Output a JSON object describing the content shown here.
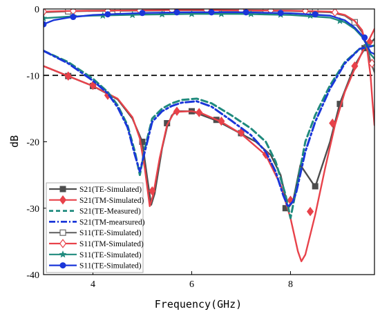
{
  "chart_data": {
    "type": "line",
    "title": "",
    "xlabel": "Frequency(GHz)",
    "ylabel": "dB",
    "xlim": [
      3,
      9.7
    ],
    "ylim": [
      -40,
      0
    ],
    "xticks": [
      4,
      6,
      8
    ],
    "yticks": [
      0,
      -10,
      -20,
      -30,
      -40
    ],
    "grid": false,
    "legend_position": "bottom-left",
    "reference_line": {
      "y": -10,
      "style": "dashed",
      "color": "#000000"
    },
    "series": [
      {
        "name": "S21(TE-Simulated)",
        "color": "#4d4d4d",
        "dash": "solid",
        "marker": "square-filled",
        "points": [
          [
            3,
            -8.6
          ],
          [
            3.5,
            -10.1
          ],
          [
            4,
            -11.6
          ],
          [
            4.5,
            -13.6
          ],
          [
            4.8,
            -16.5
          ],
          [
            5.0,
            -20.0
          ],
          [
            5.1,
            -25.5
          ],
          [
            5.18,
            -29.5
          ],
          [
            5.25,
            -27.8
          ],
          [
            5.4,
            -21.0
          ],
          [
            5.5,
            -17.8
          ],
          [
            5.6,
            -16.0
          ],
          [
            5.7,
            -15.4
          ],
          [
            6.0,
            -15.4
          ],
          [
            6.5,
            -16.8
          ],
          [
            7.0,
            -18.8
          ],
          [
            7.3,
            -20.0
          ],
          [
            7.6,
            -22.0
          ],
          [
            7.8,
            -25.0
          ],
          [
            7.95,
            -30.0
          ],
          [
            8.05,
            -29.0
          ],
          [
            8.2,
            -23.5
          ],
          [
            8.5,
            -26.8
          ],
          [
            8.8,
            -20.0
          ],
          [
            9.0,
            -14.2
          ],
          [
            9.3,
            -8.5
          ],
          [
            9.5,
            -6.0
          ],
          [
            9.7,
            -4.5
          ]
        ],
        "marker_points": [
          [
            3.5,
            -10.1
          ],
          [
            4,
            -11.6
          ],
          [
            5.0,
            -20.0
          ],
          [
            5.5,
            -17.2
          ],
          [
            6.0,
            -15.4
          ],
          [
            6.5,
            -16.7
          ],
          [
            7.0,
            -18.7
          ],
          [
            7.9,
            -30.0
          ],
          [
            8.5,
            -26.7
          ],
          [
            9.0,
            -14.3
          ],
          [
            9.5,
            -5.9
          ]
        ]
      },
      {
        "name": "S21(TM-Simulated)",
        "color": "#e8424a",
        "dash": "solid",
        "marker": "diamond-filled",
        "points": [
          [
            3,
            -8.6
          ],
          [
            3.5,
            -10.1
          ],
          [
            4,
            -11.6
          ],
          [
            4.5,
            -13.5
          ],
          [
            4.8,
            -16.3
          ],
          [
            4.95,
            -19.5
          ],
          [
            5.05,
            -24.0
          ],
          [
            5.15,
            -29.7
          ],
          [
            5.22,
            -28.0
          ],
          [
            5.35,
            -22.5
          ],
          [
            5.5,
            -17.5
          ],
          [
            5.65,
            -15.5
          ],
          [
            6.0,
            -15.4
          ],
          [
            6.2,
            -15.7
          ],
          [
            6.6,
            -17.0
          ],
          [
            7.0,
            -18.8
          ],
          [
            7.5,
            -22.0
          ],
          [
            7.8,
            -26.5
          ],
          [
            8.0,
            -31.5
          ],
          [
            8.15,
            -36.5
          ],
          [
            8.22,
            -38.0
          ],
          [
            8.3,
            -37.0
          ],
          [
            8.5,
            -31.0
          ],
          [
            8.7,
            -24.0
          ],
          [
            8.9,
            -17.5
          ],
          [
            9.1,
            -12.5
          ],
          [
            9.3,
            -9.0
          ],
          [
            9.45,
            -6.5
          ],
          [
            9.6,
            -4.5
          ],
          [
            9.7,
            -3.0
          ]
        ],
        "marker_points": [
          [
            3.5,
            -10.1
          ],
          [
            4,
            -11.5
          ],
          [
            4.3,
            -13.0
          ],
          [
            5.2,
            -27.4
          ],
          [
            5.7,
            -15.4
          ],
          [
            6.15,
            -15.6
          ],
          [
            6.6,
            -16.9
          ],
          [
            7.0,
            -18.6
          ],
          [
            7.5,
            -21.9
          ],
          [
            8.0,
            -28.8
          ],
          [
            8.4,
            -30.5
          ],
          [
            8.85,
            -17.2
          ],
          [
            9.3,
            -8.6
          ],
          [
            9.6,
            -5.0
          ]
        ]
      },
      {
        "name": "S21(TE-Measured)",
        "color": "#1f8a7d",
        "dash": "dashed",
        "marker": "none",
        "points": [
          [
            3,
            -6.3
          ],
          [
            3.5,
            -8.0
          ],
          [
            4.0,
            -10.5
          ],
          [
            4.3,
            -12.5
          ],
          [
            4.5,
            -14.5
          ],
          [
            4.7,
            -17.5
          ],
          [
            4.85,
            -21.5
          ],
          [
            4.95,
            -25.0
          ],
          [
            5.05,
            -21.0
          ],
          [
            5.2,
            -16.5
          ],
          [
            5.4,
            -15.0
          ],
          [
            5.6,
            -14.2
          ],
          [
            5.8,
            -13.7
          ],
          [
            6.1,
            -13.5
          ],
          [
            6.4,
            -14.2
          ],
          [
            6.8,
            -16.0
          ],
          [
            7.2,
            -18.0
          ],
          [
            7.5,
            -20.0
          ],
          [
            7.7,
            -23.0
          ],
          [
            7.9,
            -28.0
          ],
          [
            8.0,
            -31.5
          ],
          [
            8.12,
            -27.0
          ],
          [
            8.3,
            -20.0
          ],
          [
            8.5,
            -16.0
          ],
          [
            8.8,
            -11.5
          ],
          [
            9.1,
            -8.0
          ],
          [
            9.4,
            -6.0
          ],
          [
            9.7,
            -5.5
          ]
        ]
      },
      {
        "name": "S21(TM-mearsured)",
        "color": "#1a36d9",
        "dash": "dashdot",
        "marker": "none",
        "points": [
          [
            3,
            -6.3
          ],
          [
            3.5,
            -8.2
          ],
          [
            4.0,
            -10.8
          ],
          [
            4.3,
            -12.7
          ],
          [
            4.5,
            -14.8
          ],
          [
            4.7,
            -17.8
          ],
          [
            4.85,
            -22.0
          ],
          [
            4.95,
            -24.5
          ],
          [
            5.05,
            -21.5
          ],
          [
            5.2,
            -17.0
          ],
          [
            5.4,
            -15.4
          ],
          [
            5.6,
            -14.6
          ],
          [
            5.8,
            -14.1
          ],
          [
            6.1,
            -13.9
          ],
          [
            6.4,
            -14.7
          ],
          [
            6.8,
            -16.8
          ],
          [
            7.2,
            -19.0
          ],
          [
            7.5,
            -21.5
          ],
          [
            7.7,
            -24.5
          ],
          [
            7.85,
            -28.0
          ],
          [
            7.95,
            -29.8
          ],
          [
            8.05,
            -29.0
          ],
          [
            8.12,
            -27.5
          ],
          [
            8.3,
            -21.5
          ],
          [
            8.5,
            -17.0
          ],
          [
            8.8,
            -12.0
          ],
          [
            9.1,
            -8.2
          ],
          [
            9.4,
            -6.0
          ],
          [
            9.7,
            -5.5
          ]
        ]
      },
      {
        "name": "S11(TE-Simulated)",
        "color": "#666666",
        "dash": "solid",
        "marker": "square-open",
        "points": [
          [
            3,
            -0.5
          ],
          [
            3.5,
            -0.35
          ],
          [
            4,
            -0.3
          ],
          [
            5,
            -0.25
          ],
          [
            6,
            -0.2
          ],
          [
            7,
            -0.25
          ],
          [
            8,
            -0.3
          ],
          [
            8.8,
            -0.5
          ],
          [
            9.1,
            -1.0
          ],
          [
            9.3,
            -2.0
          ],
          [
            9.45,
            -3.5
          ],
          [
            9.55,
            -5.5
          ],
          [
            9.62,
            -8.0
          ],
          [
            9.7,
            -9.5
          ]
        ],
        "marker_points": [
          [
            3.5,
            -0.35
          ],
          [
            4.5,
            -0.25
          ],
          [
            5.5,
            -0.2
          ],
          [
            6.5,
            -0.2
          ],
          [
            7.5,
            -0.25
          ],
          [
            8.5,
            -0.4
          ],
          [
            9.3,
            -2.0
          ]
        ]
      },
      {
        "name": "S11(TM-Simulated)",
        "color": "#e8424a",
        "dash": "solid",
        "marker": "diamond-open",
        "points": [
          [
            3,
            -0.4
          ],
          [
            3.5,
            -0.3
          ],
          [
            4,
            -0.25
          ],
          [
            5,
            -0.2
          ],
          [
            6,
            -0.15
          ],
          [
            7,
            -0.2
          ],
          [
            8,
            -0.25
          ],
          [
            8.8,
            -0.4
          ],
          [
            9.1,
            -0.9
          ],
          [
            9.3,
            -1.8
          ],
          [
            9.45,
            -3.2
          ],
          [
            9.55,
            -6.0
          ],
          [
            9.62,
            -10.0
          ],
          [
            9.66,
            -14.0
          ],
          [
            9.7,
            -17.5
          ]
        ],
        "marker_points": [
          [
            3.0,
            -0.4
          ],
          [
            3.6,
            -0.3
          ],
          [
            4.3,
            -0.25
          ],
          [
            4.95,
            -0.2
          ],
          [
            5.6,
            -0.15
          ],
          [
            6.3,
            -0.15
          ],
          [
            7.0,
            -0.2
          ],
          [
            7.6,
            -0.2
          ],
          [
            8.3,
            -0.3
          ],
          [
            8.9,
            -0.5
          ],
          [
            9.65,
            -8.2
          ]
        ]
      },
      {
        "name": "S11(TE-Simulated)",
        "color": "#1f8a7d",
        "dash": "solid",
        "marker": "star",
        "points": [
          [
            3,
            -1.4
          ],
          [
            3.5,
            -1.15
          ],
          [
            4,
            -1.0
          ],
          [
            5,
            -0.85
          ],
          [
            6,
            -0.75
          ],
          [
            7,
            -0.75
          ],
          [
            8,
            -0.9
          ],
          [
            8.8,
            -1.3
          ],
          [
            9.1,
            -2.0
          ],
          [
            9.3,
            -3.0
          ],
          [
            9.45,
            -4.2
          ],
          [
            9.55,
            -5.5
          ],
          [
            9.62,
            -6.8
          ],
          [
            9.7,
            -7.5
          ]
        ],
        "marker_points": [
          [
            3.0,
            -1.4
          ],
          [
            3.6,
            -1.1
          ],
          [
            4.2,
            -1.0
          ],
          [
            4.8,
            -0.9
          ],
          [
            5.4,
            -0.8
          ],
          [
            6.0,
            -0.75
          ],
          [
            6.6,
            -0.75
          ],
          [
            7.2,
            -0.75
          ],
          [
            7.8,
            -0.85
          ],
          [
            8.4,
            -1.0
          ],
          [
            9.0,
            -1.8
          ],
          [
            9.55,
            -5.5
          ]
        ]
      },
      {
        "name": "S11(TE-Simulated)",
        "color": "#1a36d9",
        "dash": "solid",
        "marker": "circle-filled",
        "points": [
          [
            3,
            -2.3
          ],
          [
            3.2,
            -1.7
          ],
          [
            3.5,
            -1.3
          ],
          [
            4,
            -0.9
          ],
          [
            5,
            -0.6
          ],
          [
            6,
            -0.5
          ],
          [
            7,
            -0.5
          ],
          [
            8,
            -0.65
          ],
          [
            8.8,
            -1.0
          ],
          [
            9.1,
            -1.7
          ],
          [
            9.3,
            -2.8
          ],
          [
            9.45,
            -4.0
          ],
          [
            9.55,
            -5.5
          ],
          [
            9.62,
            -6.5
          ],
          [
            9.7,
            -6.8
          ]
        ],
        "marker_points": [
          [
            3.0,
            -2.3
          ],
          [
            3.6,
            -1.2
          ],
          [
            4.3,
            -0.8
          ],
          [
            5.0,
            -0.6
          ],
          [
            5.7,
            -0.5
          ],
          [
            6.4,
            -0.5
          ],
          [
            7.1,
            -0.5
          ],
          [
            7.8,
            -0.6
          ],
          [
            8.5,
            -0.8
          ],
          [
            9.5,
            -4.3
          ]
        ]
      }
    ]
  }
}
